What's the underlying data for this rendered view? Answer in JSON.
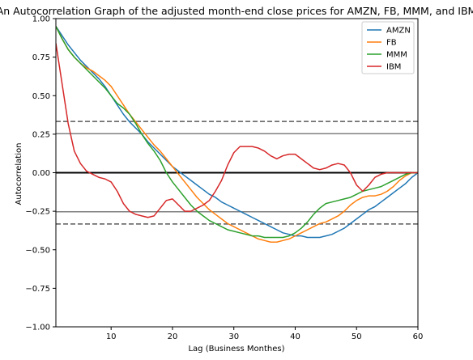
{
  "chart_data": {
    "type": "line",
    "title": "An Autocorrelation Graph of the adjusted month-end close prices for AMZN, FB, MMM, and IBM",
    "xlabel": "Lag (Business Monthes)",
    "ylabel": "Autocorrelation",
    "xlim": [
      1,
      60
    ],
    "ylim": [
      -1.0,
      1.0
    ],
    "xticks": [
      10,
      20,
      30,
      40,
      50,
      60
    ],
    "yticks": [
      -1.0,
      -0.75,
      -0.5,
      -0.25,
      0.0,
      0.25,
      0.5,
      0.75,
      1.0
    ],
    "ytick_labels": [
      "−1.00",
      "−0.75",
      "−0.50",
      "−0.25",
      "0.00",
      "0.25",
      "0.50",
      "0.75",
      "1.00"
    ],
    "xtick_labels": [
      "10",
      "20",
      "30",
      "40",
      "50",
      "60"
    ],
    "grid": false,
    "legend": "top-right",
    "reference_lines": [
      {
        "y": 0.0,
        "style": "solid",
        "color": "#000000",
        "width": 2
      },
      {
        "y": 0.253,
        "style": "solid",
        "color": "#7f7f7f",
        "width": 1.5
      },
      {
        "y": -0.253,
        "style": "solid",
        "color": "#7f7f7f",
        "width": 1.5
      },
      {
        "y": 0.333,
        "style": "dashed",
        "color": "#595959",
        "width": 1.5
      },
      {
        "y": -0.333,
        "style": "dashed",
        "color": "#595959",
        "width": 1.5
      }
    ],
    "series": [
      {
        "name": "AMZN",
        "color": "#1f77b4",
        "x": [
          1,
          2,
          3,
          4,
          5,
          6,
          7,
          8,
          9,
          10,
          11,
          12,
          13,
          14,
          15,
          16,
          17,
          18,
          19,
          20,
          21,
          22,
          23,
          24,
          25,
          26,
          27,
          28,
          29,
          30,
          31,
          32,
          33,
          34,
          35,
          36,
          37,
          38,
          39,
          40,
          41,
          42,
          43,
          44,
          45,
          46,
          47,
          48,
          49,
          50,
          51,
          52,
          53,
          54,
          55,
          56,
          57,
          58,
          59,
          60
        ],
        "values": [
          0.95,
          0.89,
          0.83,
          0.78,
          0.73,
          0.69,
          0.65,
          0.61,
          0.56,
          0.5,
          0.44,
          0.38,
          0.33,
          0.29,
          0.25,
          0.2,
          0.16,
          0.12,
          0.08,
          0.04,
          0.01,
          -0.02,
          -0.05,
          -0.08,
          -0.11,
          -0.14,
          -0.16,
          -0.19,
          -0.21,
          -0.23,
          -0.25,
          -0.27,
          -0.29,
          -0.31,
          -0.33,
          -0.35,
          -0.37,
          -0.39,
          -0.4,
          -0.41,
          -0.41,
          -0.42,
          -0.42,
          -0.42,
          -0.41,
          -0.4,
          -0.38,
          -0.36,
          -0.33,
          -0.3,
          -0.27,
          -0.24,
          -0.22,
          -0.19,
          -0.16,
          -0.13,
          -0.1,
          -0.07,
          -0.03,
          0.0
        ]
      },
      {
        "name": "FB",
        "color": "#ff7f0e",
        "x": [
          1,
          2,
          3,
          4,
          5,
          6,
          7,
          8,
          9,
          10,
          11,
          12,
          13,
          14,
          15,
          16,
          17,
          18,
          19,
          20,
          21,
          22,
          23,
          24,
          25,
          26,
          27,
          28,
          29,
          30,
          31,
          32,
          33,
          34,
          35,
          36,
          37,
          38,
          39,
          40,
          41,
          42,
          43,
          44,
          45,
          46,
          47,
          48,
          49,
          50,
          51,
          52,
          53,
          54,
          55,
          56,
          57,
          58,
          59,
          60
        ],
        "values": [
          0.95,
          0.87,
          0.8,
          0.75,
          0.71,
          0.68,
          0.66,
          0.63,
          0.6,
          0.56,
          0.5,
          0.44,
          0.38,
          0.33,
          0.28,
          0.23,
          0.18,
          0.14,
          0.09,
          0.04,
          -0.01,
          -0.06,
          -0.11,
          -0.16,
          -0.2,
          -0.24,
          -0.27,
          -0.3,
          -0.33,
          -0.35,
          -0.37,
          -0.39,
          -0.41,
          -0.43,
          -0.44,
          -0.45,
          -0.45,
          -0.44,
          -0.43,
          -0.41,
          -0.39,
          -0.37,
          -0.35,
          -0.33,
          -0.32,
          -0.3,
          -0.28,
          -0.25,
          -0.21,
          -0.18,
          -0.16,
          -0.15,
          -0.15,
          -0.14,
          -0.12,
          -0.09,
          -0.05,
          -0.02,
          0.0,
          0.0
        ]
      },
      {
        "name": "MMM",
        "color": "#2ca02c",
        "x": [
          1,
          2,
          3,
          4,
          5,
          6,
          7,
          8,
          9,
          10,
          11,
          12,
          13,
          14,
          15,
          16,
          17,
          18,
          19,
          20,
          21,
          22,
          23,
          24,
          25,
          26,
          27,
          28,
          29,
          30,
          31,
          32,
          33,
          34,
          35,
          36,
          37,
          38,
          39,
          40,
          41,
          42,
          43,
          44,
          45,
          46,
          47,
          48,
          49,
          50,
          51,
          52,
          53,
          54,
          55,
          56,
          57,
          58,
          59,
          60
        ],
        "values": [
          0.95,
          0.87,
          0.8,
          0.75,
          0.71,
          0.67,
          0.63,
          0.59,
          0.55,
          0.5,
          0.45,
          0.42,
          0.38,
          0.32,
          0.25,
          0.19,
          0.14,
          0.08,
          0.0,
          -0.06,
          -0.11,
          -0.16,
          -0.21,
          -0.25,
          -0.28,
          -0.31,
          -0.33,
          -0.35,
          -0.37,
          -0.38,
          -0.39,
          -0.4,
          -0.41,
          -0.41,
          -0.42,
          -0.42,
          -0.42,
          -0.42,
          -0.41,
          -0.39,
          -0.36,
          -0.32,
          -0.27,
          -0.23,
          -0.2,
          -0.19,
          -0.18,
          -0.17,
          -0.16,
          -0.14,
          -0.12,
          -0.11,
          -0.1,
          -0.09,
          -0.07,
          -0.05,
          -0.03,
          -0.01,
          0.0,
          0.0
        ]
      },
      {
        "name": "IBM",
        "color": "#d62728",
        "x": [
          1,
          2,
          3,
          4,
          5,
          6,
          7,
          8,
          9,
          10,
          11,
          12,
          13,
          14,
          15,
          16,
          17,
          18,
          19,
          20,
          21,
          22,
          23,
          24,
          25,
          26,
          27,
          28,
          29,
          30,
          31,
          32,
          33,
          34,
          35,
          36,
          37,
          38,
          39,
          40,
          41,
          42,
          43,
          44,
          45,
          46,
          47,
          48,
          49,
          50,
          51,
          52,
          53,
          54,
          55,
          56,
          57,
          58,
          59,
          60
        ],
        "values": [
          0.84,
          0.58,
          0.32,
          0.14,
          0.06,
          0.01,
          -0.01,
          -0.03,
          -0.04,
          -0.06,
          -0.12,
          -0.2,
          -0.25,
          -0.27,
          -0.28,
          -0.29,
          -0.28,
          -0.23,
          -0.18,
          -0.17,
          -0.21,
          -0.25,
          -0.25,
          -0.23,
          -0.21,
          -0.18,
          -0.12,
          -0.05,
          0.05,
          0.13,
          0.17,
          0.17,
          0.17,
          0.16,
          0.14,
          0.11,
          0.09,
          0.11,
          0.12,
          0.12,
          0.09,
          0.06,
          0.03,
          0.02,
          0.03,
          0.05,
          0.06,
          0.05,
          0.0,
          -0.08,
          -0.12,
          -0.08,
          -0.03,
          -0.01,
          0.0,
          0.0,
          0.0,
          0.0,
          0.0,
          0.0
        ]
      }
    ]
  }
}
